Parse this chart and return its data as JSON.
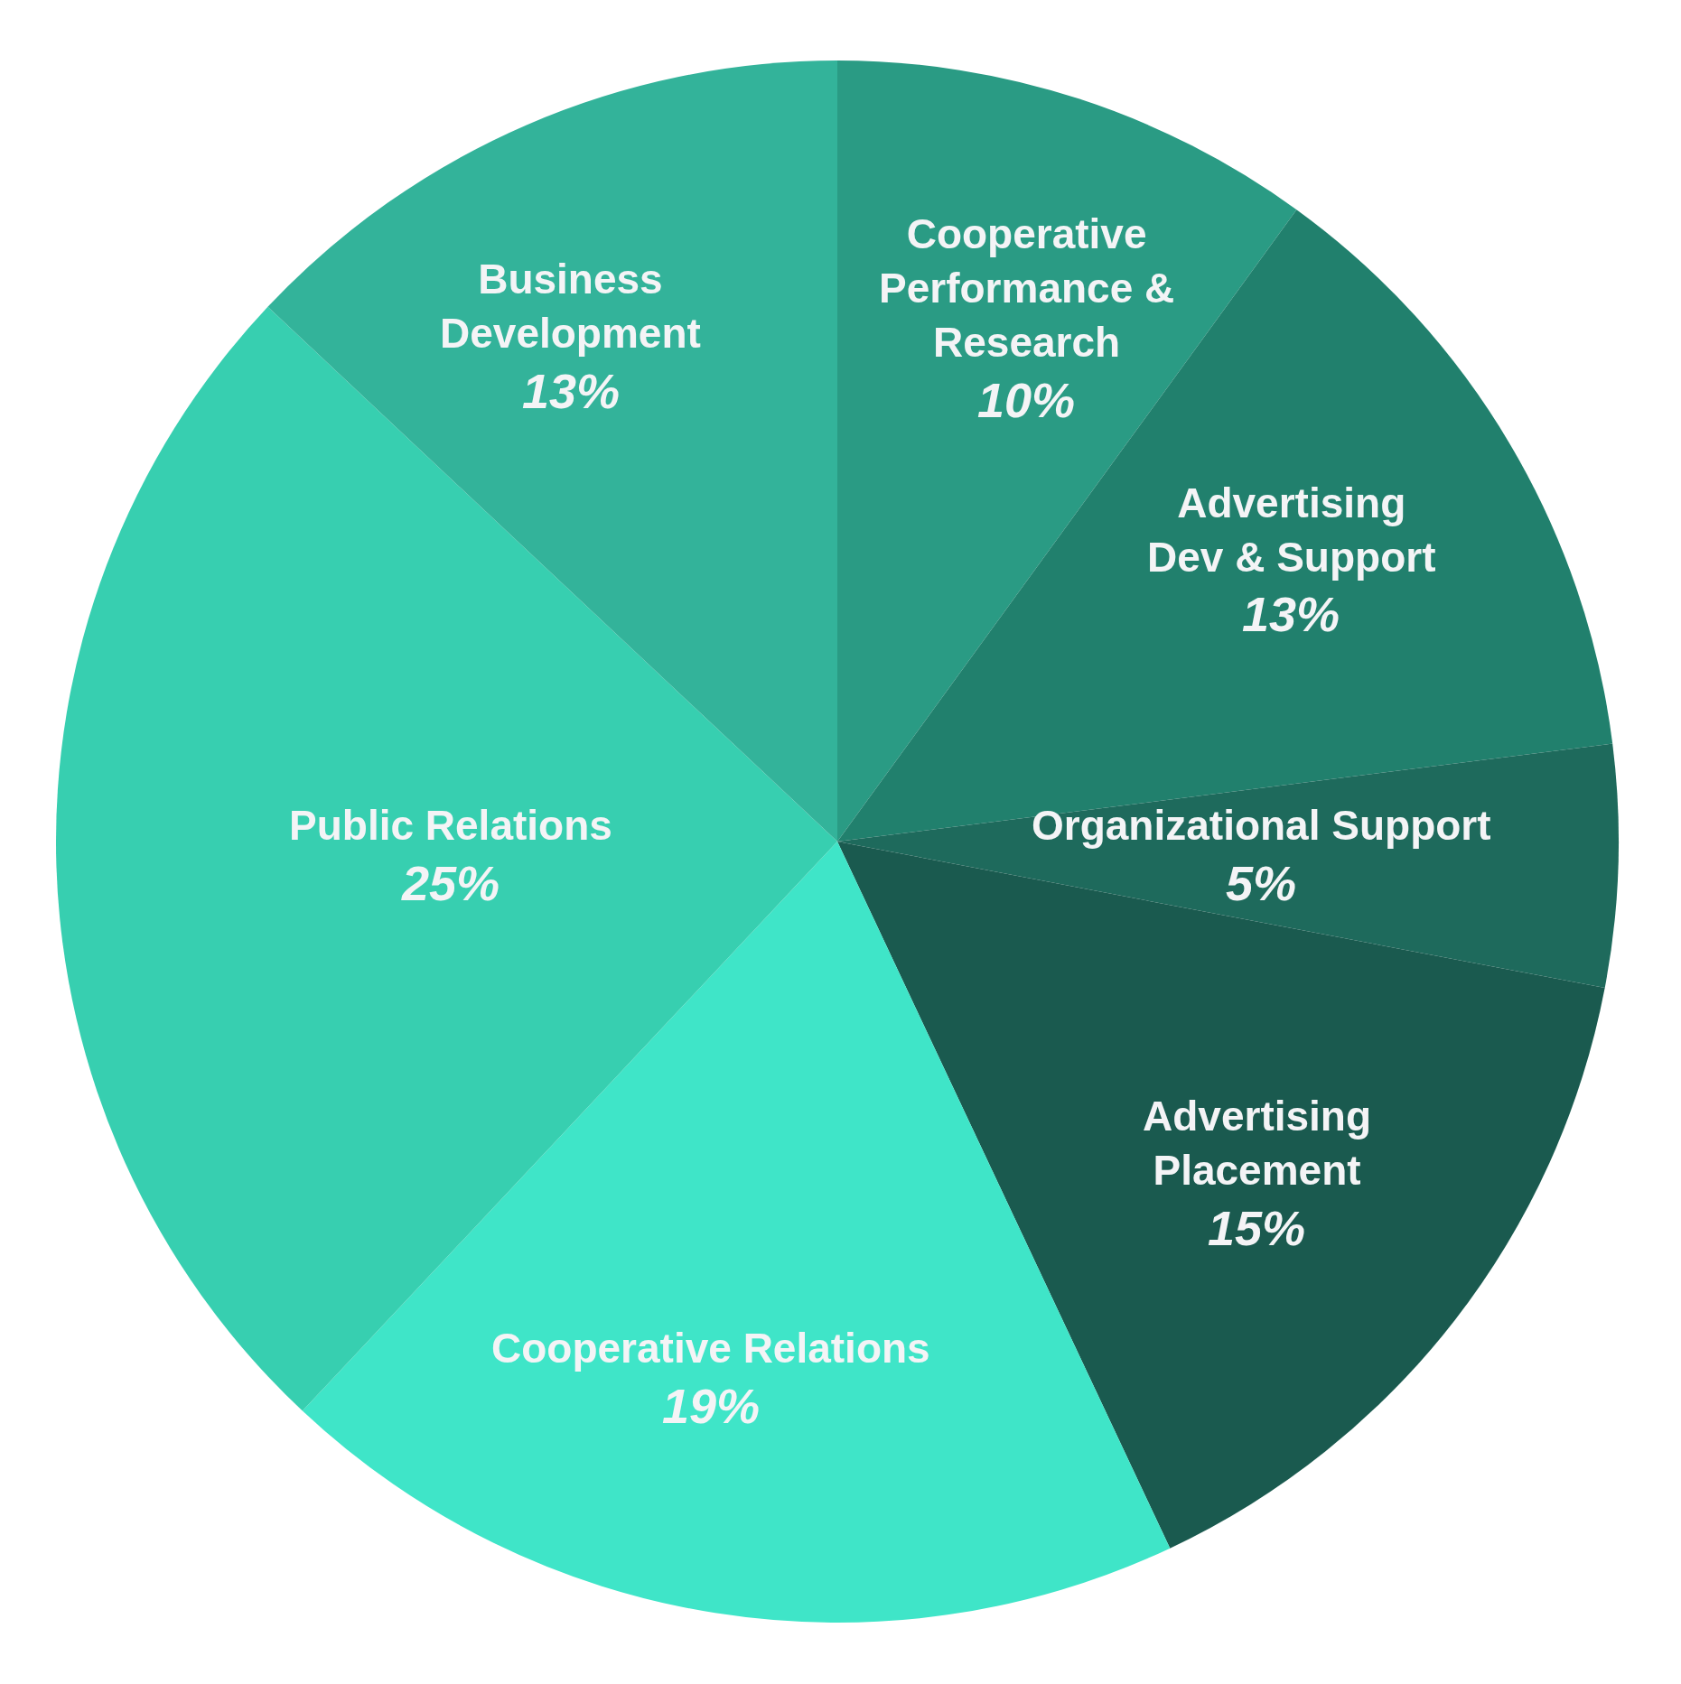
{
  "chart_data": {
    "type": "pie",
    "categories": [
      "Cooperative Performance & Research",
      "Advertising Dev & Support",
      "Organizational Support",
      "Advertising Placement",
      "Cooperative Relations",
      "Public Relations",
      "Business Development"
    ],
    "values": [
      10,
      13,
      5,
      15,
      19,
      25,
      13
    ],
    "colors": [
      "#2a9b84",
      "#21806d",
      "#1e6a5c",
      "#1a5a4f",
      "#3fe5c8",
      "#37cfb0",
      "#33b39a"
    ],
    "value_labels": [
      "10%",
      "13%",
      "5%",
      "15%",
      "19%",
      "25%",
      "13%"
    ]
  }
}
